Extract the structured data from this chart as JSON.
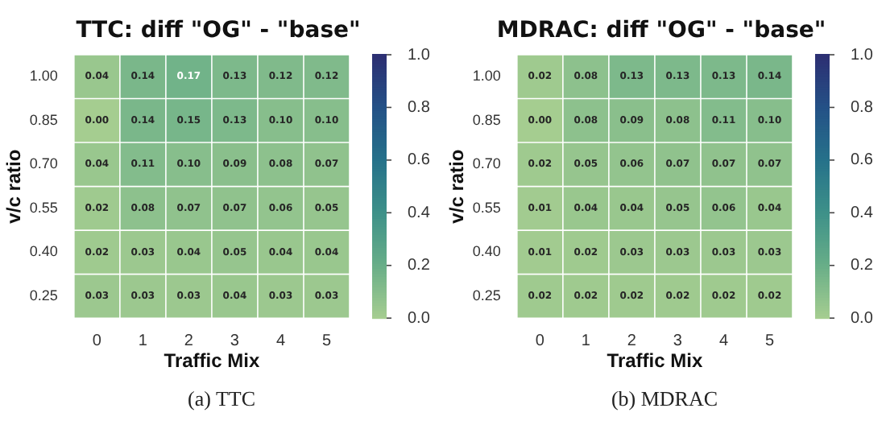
{
  "chart_data": [
    {
      "type": "heatmap",
      "title": "TTC: diff \"OG\" - \"base\"",
      "xlabel": "Traffic Mix",
      "ylabel": "v/c ratio",
      "categories": [
        "0",
        "1",
        "2",
        "3",
        "4",
        "5"
      ],
      "y_categories": [
        "1.00",
        "0.85",
        "0.70",
        "0.55",
        "0.40",
        "0.25"
      ],
      "cells": [
        [
          0.04,
          0.14,
          0.17,
          0.13,
          0.12,
          0.12
        ],
        [
          0.0,
          0.14,
          0.15,
          0.13,
          0.1,
          0.1
        ],
        [
          0.04,
          0.11,
          0.1,
          0.09,
          0.08,
          0.07
        ],
        [
          0.02,
          0.08,
          0.07,
          0.07,
          0.06,
          0.05
        ],
        [
          0.02,
          0.03,
          0.04,
          0.05,
          0.04,
          0.04
        ],
        [
          0.03,
          0.03,
          0.03,
          0.04,
          0.03,
          0.03
        ]
      ],
      "cell_labels": [
        [
          "0.04",
          "0.14",
          "0.17",
          "0.13",
          "0.12",
          "0.12"
        ],
        [
          "0.00",
          "0.14",
          "0.15",
          "0.13",
          "0.10",
          "0.10"
        ],
        [
          "0.04",
          "0.11",
          "0.10",
          "0.09",
          "0.08",
          "0.07"
        ],
        [
          "0.02",
          "0.08",
          "0.07",
          "0.07",
          "0.06",
          "0.05"
        ],
        [
          "0.02",
          "0.03",
          "0.04",
          "0.05",
          "0.04",
          "0.04"
        ],
        [
          "0.03",
          "0.03",
          "0.03",
          "0.04",
          "0.03",
          "0.03"
        ]
      ],
      "data_labels": true,
      "clim": [
        0,
        1
      ],
      "cticks": [
        {
          "value": 0,
          "label": "0.0"
        },
        {
          "value": 0.2,
          "label": "0.2"
        },
        {
          "value": 0.4,
          "label": "0.4"
        },
        {
          "value": 0.6,
          "label": "0.6"
        },
        {
          "value": 0.8,
          "label": "0.8"
        },
        {
          "value": 1,
          "label": "1.0"
        }
      ],
      "annotations": [
        "(a) TTC"
      ]
    },
    {
      "type": "heatmap",
      "title": "MDRAC: diff \"OG\" - \"base\"",
      "xlabel": "Traffic Mix",
      "ylabel": "v/c ratio",
      "categories": [
        "0",
        "1",
        "2",
        "3",
        "4",
        "5"
      ],
      "y_categories": [
        "1.00",
        "0.85",
        "0.70",
        "0.55",
        "0.40",
        "0.25"
      ],
      "cells": [
        [
          0.02,
          0.08,
          0.13,
          0.13,
          0.13,
          0.14
        ],
        [
          0.0,
          0.08,
          0.09,
          0.08,
          0.11,
          0.1
        ],
        [
          0.02,
          0.05,
          0.06,
          0.07,
          0.07,
          0.07
        ],
        [
          0.01,
          0.04,
          0.04,
          0.05,
          0.06,
          0.04
        ],
        [
          0.01,
          0.02,
          0.03,
          0.03,
          0.03,
          0.03
        ],
        [
          0.02,
          0.02,
          0.02,
          0.02,
          0.02,
          0.02
        ]
      ],
      "cell_labels": [
        [
          "0.02",
          "0.08",
          "0.13",
          "0.13",
          "0.13",
          "0.14"
        ],
        [
          "0.00",
          "0.08",
          "0.09",
          "0.08",
          "0.11",
          "0.10"
        ],
        [
          "0.02",
          "0.05",
          "0.06",
          "0.07",
          "0.07",
          "0.07"
        ],
        [
          "0.01",
          "0.04",
          "0.04",
          "0.05",
          "0.06",
          "0.04"
        ],
        [
          "0.01",
          "0.02",
          "0.03",
          "0.03",
          "0.03",
          "0.03"
        ],
        [
          "0.02",
          "0.02",
          "0.02",
          "0.02",
          "0.02",
          "0.02"
        ]
      ],
      "data_labels": true,
      "clim": [
        0,
        1
      ],
      "cticks": [
        {
          "value": 0,
          "label": "0.0"
        },
        {
          "value": 0.2,
          "label": "0.2"
        },
        {
          "value": 0.4,
          "label": "0.4"
        },
        {
          "value": 0.6,
          "label": "0.6"
        },
        {
          "value": 0.8,
          "label": "0.8"
        },
        {
          "value": 1,
          "label": "1.0"
        }
      ],
      "annotations": [
        "(b) MDRAC"
      ]
    }
  ]
}
